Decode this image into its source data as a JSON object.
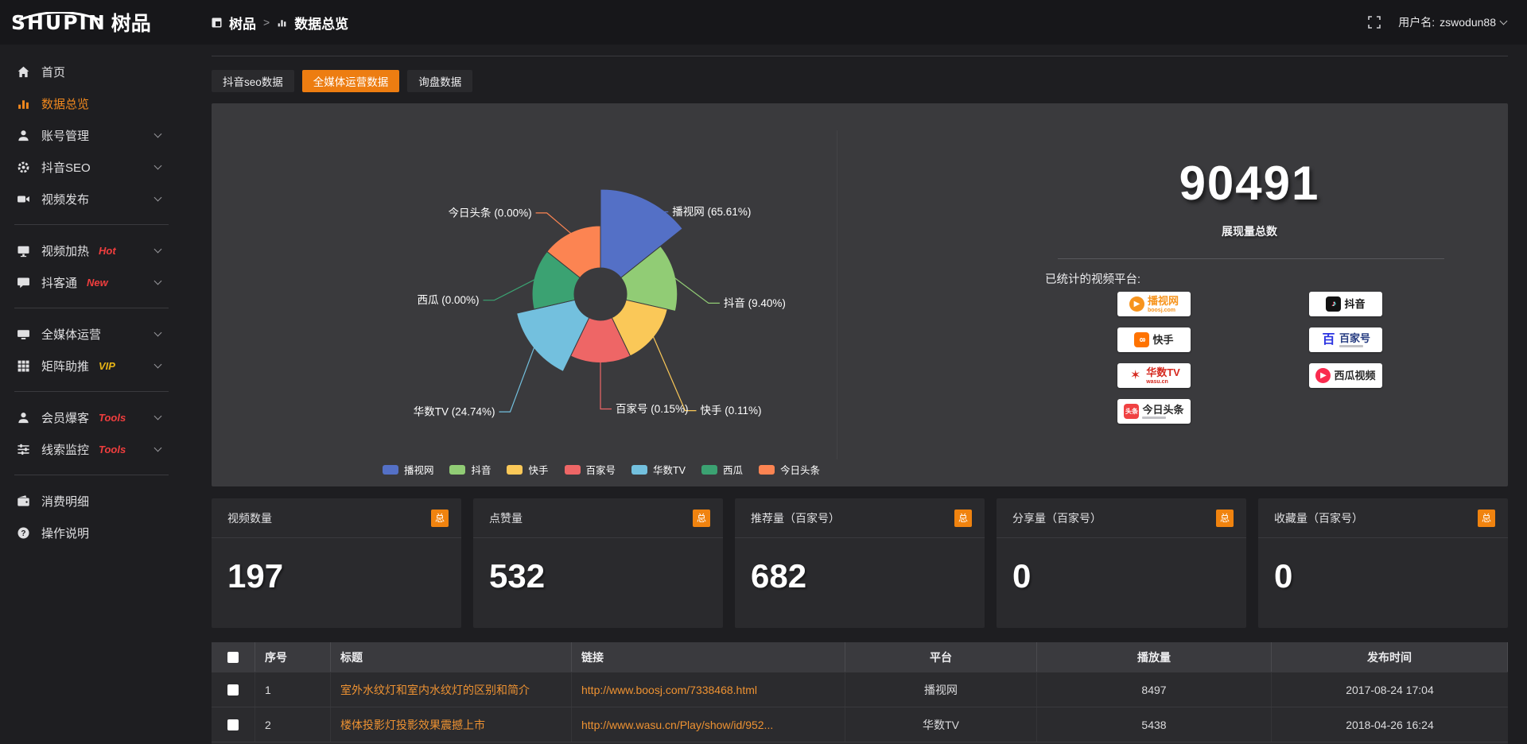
{
  "colors": {
    "accent_orange": "#ED7D11",
    "link_orange": "#EE9232",
    "badge_orange": "#f0830f",
    "sidebar_active": "#f0881e",
    "hot_red": "#f03e3e",
    "vip_gold": "#e7b416"
  },
  "header": {
    "logo_en": "SHUPIN",
    "logo_cn": "树品",
    "breadcrumb": {
      "root": "树品",
      "separator": ">",
      "current": "数据总览"
    },
    "user_label": "用户名:",
    "username": "zswodun88"
  },
  "tabs": [
    {
      "label": "抖音seo数据",
      "active": false
    },
    {
      "label": "全媒体运营数据",
      "active": true
    },
    {
      "label": "询盘数据",
      "active": false
    }
  ],
  "sidebar": {
    "items": [
      {
        "label": "首页",
        "icon": "home-icon"
      },
      {
        "label": "数据总览",
        "icon": "bar-chart-icon",
        "active": true
      },
      {
        "label": "账号管理",
        "icon": "user-icon",
        "chevron": true
      },
      {
        "label": "抖音SEO",
        "icon": "gear-icon",
        "chevron": true
      },
      {
        "label": "视频发布",
        "icon": "video-icon",
        "chevron": true,
        "divider_after": true
      },
      {
        "label": "视频加热",
        "icon": "screen-icon",
        "chevron": true,
        "badge": "Hot",
        "badge_color": "#f03e3e"
      },
      {
        "label": "抖客通",
        "icon": "chat-icon",
        "chevron": true,
        "badge": "New",
        "badge_color": "#f03e3e",
        "divider_after": true
      },
      {
        "label": "全媒体运营",
        "icon": "monitor-icon",
        "chevron": true
      },
      {
        "label": "矩阵助推",
        "icon": "grid-icon",
        "chevron": true,
        "badge": "VIP",
        "badge_color": "#e7b416",
        "divider_after": true
      },
      {
        "label": "会员爆客",
        "icon": "user-icon",
        "chevron": true,
        "badge": "Tools",
        "badge_color": "#f03e3e"
      },
      {
        "label": "线索监控",
        "icon": "sliders-icon",
        "chevron": true,
        "badge": "Tools",
        "badge_color": "#f03e3e",
        "divider_after": true
      },
      {
        "label": "消费明细",
        "icon": "wallet-icon"
      },
      {
        "label": "操作说明",
        "icon": "question-icon"
      }
    ]
  },
  "chart_data": {
    "type": "pie",
    "variant": "nightingale-rose",
    "title": "",
    "legend_position": "bottom",
    "items": [
      {
        "name": "播视网",
        "value": 65.61,
        "label": "播视网 (65.61%)",
        "color": "#5470c6"
      },
      {
        "name": "抖音",
        "value": 9.4,
        "label": "抖音 (9.40%)",
        "color": "#91cc75"
      },
      {
        "name": "快手",
        "value": 0.11,
        "label": "快手 (0.11%)",
        "color": "#fac858"
      },
      {
        "name": "百家号",
        "value": 0.15,
        "label": "百家号 (0.15%)",
        "color": "#ee6666"
      },
      {
        "name": "华数TV",
        "value": 24.74,
        "label": "华数TV (24.74%)",
        "color": "#73c0de"
      },
      {
        "name": "西瓜",
        "value": 0.0,
        "label": "西瓜 (0.00%)",
        "color": "#3ba272"
      },
      {
        "name": "今日头条",
        "value": 0.0,
        "label": "今日头条 (0.00%)",
        "color": "#fc8452"
      }
    ],
    "legend": [
      "播视网",
      "抖音",
      "快手",
      "百家号",
      "华数TV",
      "西瓜",
      "今日头条"
    ]
  },
  "summary": {
    "total_value": "90491",
    "total_label": "展现量总数",
    "platforms_label": "已统计的视频平台:",
    "platforms": [
      {
        "name": "播视网",
        "sub": "boosj.com",
        "icon": "boosj-logo",
        "icon_color": "#f7941d",
        "text_color": "#f7941d",
        "col": 0
      },
      {
        "name": "快手",
        "icon": "kuaishou-logo",
        "icon_color": "#ff7300",
        "text_color": "#2b2b2b",
        "col": 0
      },
      {
        "name": "华数TV",
        "sub": "wasu.cn",
        "icon": "wasu-logo",
        "icon_color": "#d5281e",
        "text_color": "#d5281e",
        "col": 0
      },
      {
        "name": "今日头条",
        "icon": "toutiao-logo",
        "icon_color": "#f04142",
        "text_color": "#2b2b2b",
        "col": 0,
        "tagline_bar": true
      },
      {
        "name": "抖音",
        "icon": "douyin-logo",
        "icon_color": "#121212",
        "text_color": "#121212",
        "col": 1
      },
      {
        "name": "百家号",
        "icon": "baijiahao-logo",
        "icon_color": "#2932e1",
        "text_color": "#253b80",
        "col": 1,
        "tagline_bar": true
      },
      {
        "name": "西瓜视频",
        "icon": "xigua-logo",
        "icon_color": "#fa2a4e",
        "text_color": "#2b2b2b",
        "col": 1
      }
    ]
  },
  "stat_cards": [
    {
      "title": "视频数量",
      "badge": "总",
      "value": "197"
    },
    {
      "title": "点赞量",
      "badge": "总",
      "value": "532"
    },
    {
      "title": "推荐量（百家号）",
      "badge": "总",
      "value": "682"
    },
    {
      "title": "分享量（百家号）",
      "badge": "总",
      "value": "0"
    },
    {
      "title": "收藏量（百家号）",
      "badge": "总",
      "value": "0"
    }
  ],
  "table": {
    "columns": [
      "",
      "序号",
      "标题",
      "链接",
      "平台",
      "播放量",
      "发布时间"
    ],
    "rows": [
      {
        "index": "1",
        "title": "室外水纹灯和室内水纹灯的区别和简介",
        "link": "http://www.boosj.com/7338468.html",
        "platform": "播视网",
        "views": "8497",
        "published": "2017-08-24 17:04"
      },
      {
        "index": "2",
        "title": "楼体投影灯投影效果震撼上市",
        "link": "http://www.wasu.cn/Play/show/id/952...",
        "platform": "华数TV",
        "views": "5438",
        "published": "2018-04-26 16:24"
      }
    ]
  }
}
